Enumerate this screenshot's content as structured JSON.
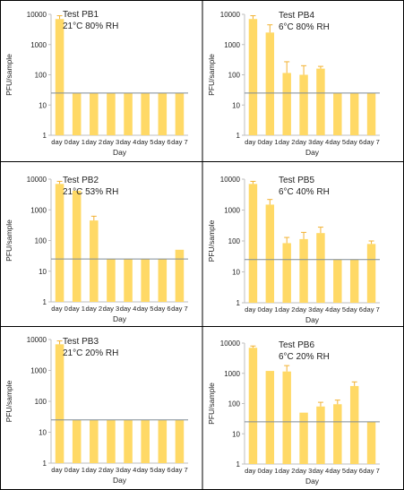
{
  "chart_data": [
    {
      "type": "bar",
      "title_lines": [
        "Test PB1",
        "21°C 80% RH"
      ],
      "categories": [
        "day 0",
        "day 1",
        "day 2",
        "day 3",
        "day 4",
        "day 5",
        "day 6",
        "day 7"
      ],
      "values": [
        7000,
        25,
        25,
        25,
        25,
        25,
        25,
        25
      ],
      "error_upper": [
        9000,
        null,
        null,
        null,
        null,
        null,
        null,
        null
      ],
      "reference_line": 25,
      "xlabel": "Day",
      "ylabel": "PFU/sample",
      "yscale": "log",
      "ylim": [
        1,
        10000
      ],
      "yticks": [
        "1",
        "10",
        "100",
        "1000",
        "10000"
      ]
    },
    {
      "type": "bar",
      "title_lines": [
        "Test PB4",
        "6°C 80% RH"
      ],
      "categories": [
        "day 0",
        "day 1",
        "day 2",
        "day 3",
        "day 4",
        "day 5",
        "day 6",
        "day 7"
      ],
      "values": [
        7000,
        2500,
        115,
        100,
        160,
        25,
        25,
        25
      ],
      "error_upper": [
        9000,
        4500,
        270,
        200,
        190,
        null,
        null,
        null
      ],
      "reference_line": 25,
      "xlabel": "Day",
      "ylabel": "PFU/sample",
      "yscale": "log",
      "ylim": [
        1,
        10000
      ],
      "yticks": [
        "1",
        "10",
        "100",
        "1000",
        "10000"
      ]
    },
    {
      "type": "bar",
      "title_lines": [
        "Test PB2",
        "21°C 53% RH"
      ],
      "categories": [
        "day 0",
        "day 1",
        "day 2",
        "day 3",
        "day 4",
        "day 5",
        "day 6",
        "day 7"
      ],
      "values": [
        7000,
        4200,
        450,
        25,
        25,
        25,
        25,
        50
      ],
      "error_upper": [
        8500,
        null,
        620,
        null,
        null,
        null,
        null,
        null
      ],
      "reference_line": 25,
      "xlabel": "Day",
      "ylabel": "PFU/sample",
      "yscale": "log",
      "ylim": [
        1,
        10000
      ],
      "yticks": [
        "1",
        "10",
        "100",
        "1000",
        "10000"
      ]
    },
    {
      "type": "bar",
      "title_lines": [
        "Test PB5",
        "6°C 40% RH"
      ],
      "categories": [
        "day 0",
        "day 1",
        "day 2",
        "day 3",
        "day 4",
        "day 5",
        "day 6",
        "day 7"
      ],
      "values": [
        7000,
        1500,
        85,
        115,
        180,
        25,
        25,
        80
      ],
      "error_upper": [
        8500,
        2200,
        130,
        190,
        280,
        null,
        null,
        100
      ],
      "reference_line": 25,
      "xlabel": "Day",
      "ylabel": "PFU/sample",
      "yscale": "log",
      "ylim": [
        1,
        10000
      ],
      "yticks": [
        "1",
        "10",
        "100",
        "1000",
        "10000"
      ]
    },
    {
      "type": "bar",
      "title_lines": [
        "Test PB3",
        "21°C 20% RH"
      ],
      "categories": [
        "day 0",
        "day 1",
        "day 2",
        "day 3",
        "day 4",
        "day 5",
        "day 6",
        "day 7"
      ],
      "values": [
        7000,
        25,
        25,
        25,
        25,
        25,
        25,
        25
      ],
      "error_upper": [
        9000,
        null,
        null,
        null,
        null,
        null,
        null,
        null
      ],
      "reference_line": 25,
      "xlabel": "Day",
      "ylabel": "PFU/sample",
      "yscale": "log",
      "ylim": [
        1,
        10000
      ],
      "yticks": [
        "1",
        "10",
        "100",
        "1000",
        "10000"
      ]
    },
    {
      "type": "bar",
      "title_lines": [
        "Test PB6",
        "6°C 20% RH"
      ],
      "categories": [
        "day 0",
        "day 1",
        "day 2",
        "day 3",
        "day 4",
        "day 5",
        "day 6",
        "day 7"
      ],
      "values": [
        7000,
        1200,
        1150,
        50,
        80,
        95,
        380,
        25
      ],
      "error_upper": [
        8000,
        null,
        1800,
        null,
        110,
        130,
        520,
        null
      ],
      "reference_line": 25,
      "xlabel": "Day",
      "ylabel": "PFU/sample",
      "yscale": "log",
      "ylim": [
        1,
        10000
      ],
      "yticks": [
        "1",
        "10",
        "100",
        "1000",
        "10000"
      ]
    }
  ],
  "colors": {
    "bar": "#FFD966",
    "error_bar": "#F2B233",
    "reference_line": "#7F8C96",
    "axis": "#BFBFBF",
    "panel_border": "#000000",
    "text": "#222222"
  }
}
